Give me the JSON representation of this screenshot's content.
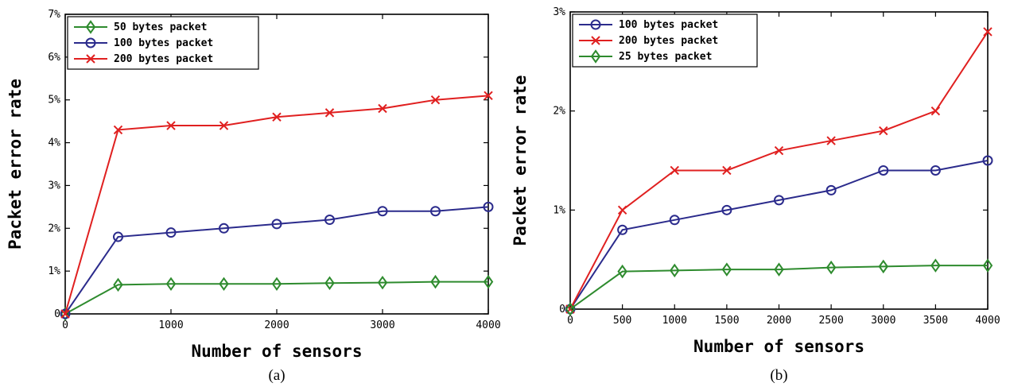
{
  "chart_data": [
    {
      "type": "line",
      "caption": "(a)",
      "xlabel": "Number of sensors",
      "ylabel": "Packet error rate",
      "x": [
        0,
        500,
        1000,
        1500,
        2000,
        2500,
        3000,
        3500,
        4000
      ],
      "xlim": [
        0,
        4000
      ],
      "ylim": [
        0,
        7
      ],
      "xticks": [
        "0",
        "1000",
        "2000",
        "3000",
        "4000"
      ],
      "yticks": [
        "0",
        "1%",
        "2%",
        "3%",
        "4%",
        "5%",
        "6%",
        "7%"
      ],
      "grid": false,
      "legend_position": "top-left",
      "series": [
        {
          "name": "50 bytes packet",
          "color": "#2e8b2e",
          "marker": "diamond",
          "values": [
            0,
            0.68,
            0.7,
            0.7,
            0.7,
            0.72,
            0.73,
            0.75,
            0.75
          ]
        },
        {
          "name": "100 bytes packet",
          "color": "#2b2b8c",
          "marker": "circle",
          "values": [
            0,
            1.8,
            1.9,
            2.0,
            2.1,
            2.2,
            2.4,
            2.4,
            2.5
          ]
        },
        {
          "name": "200 bytes packet",
          "color": "#e02020",
          "marker": "x",
          "values": [
            0,
            4.3,
            4.4,
            4.4,
            4.6,
            4.7,
            4.8,
            5.0,
            5.1
          ]
        }
      ]
    },
    {
      "type": "line",
      "caption": "(b)",
      "xlabel": "Number of sensors",
      "ylabel": "Packet error rate",
      "x": [
        0,
        500,
        1000,
        1500,
        2000,
        2500,
        3000,
        3500,
        4000
      ],
      "xlim": [
        0,
        4000
      ],
      "ylim": [
        0,
        3
      ],
      "xticks": [
        "0",
        "500",
        "1000",
        "1500",
        "2000",
        "2500",
        "3000",
        "3500",
        "4000"
      ],
      "yticks": [
        "0",
        "1%",
        "2%",
        "3%"
      ],
      "grid": false,
      "legend_position": "top-left",
      "series": [
        {
          "name": "100 bytes packet",
          "color": "#2b2b8c",
          "marker": "circle",
          "values": [
            0,
            0.8,
            0.9,
            1.0,
            1.1,
            1.2,
            1.4,
            1.4,
            1.5
          ]
        },
        {
          "name": "200 bytes packet",
          "color": "#e02020",
          "marker": "x",
          "values": [
            0,
            1.0,
            1.4,
            1.4,
            1.6,
            1.7,
            1.8,
            2.0,
            2.8
          ]
        },
        {
          "name": "25 bytes packet",
          "color": "#2e8b2e",
          "marker": "diamond",
          "values": [
            0,
            0.38,
            0.39,
            0.4,
            0.4,
            0.42,
            0.43,
            0.44,
            0.44
          ]
        }
      ]
    }
  ]
}
